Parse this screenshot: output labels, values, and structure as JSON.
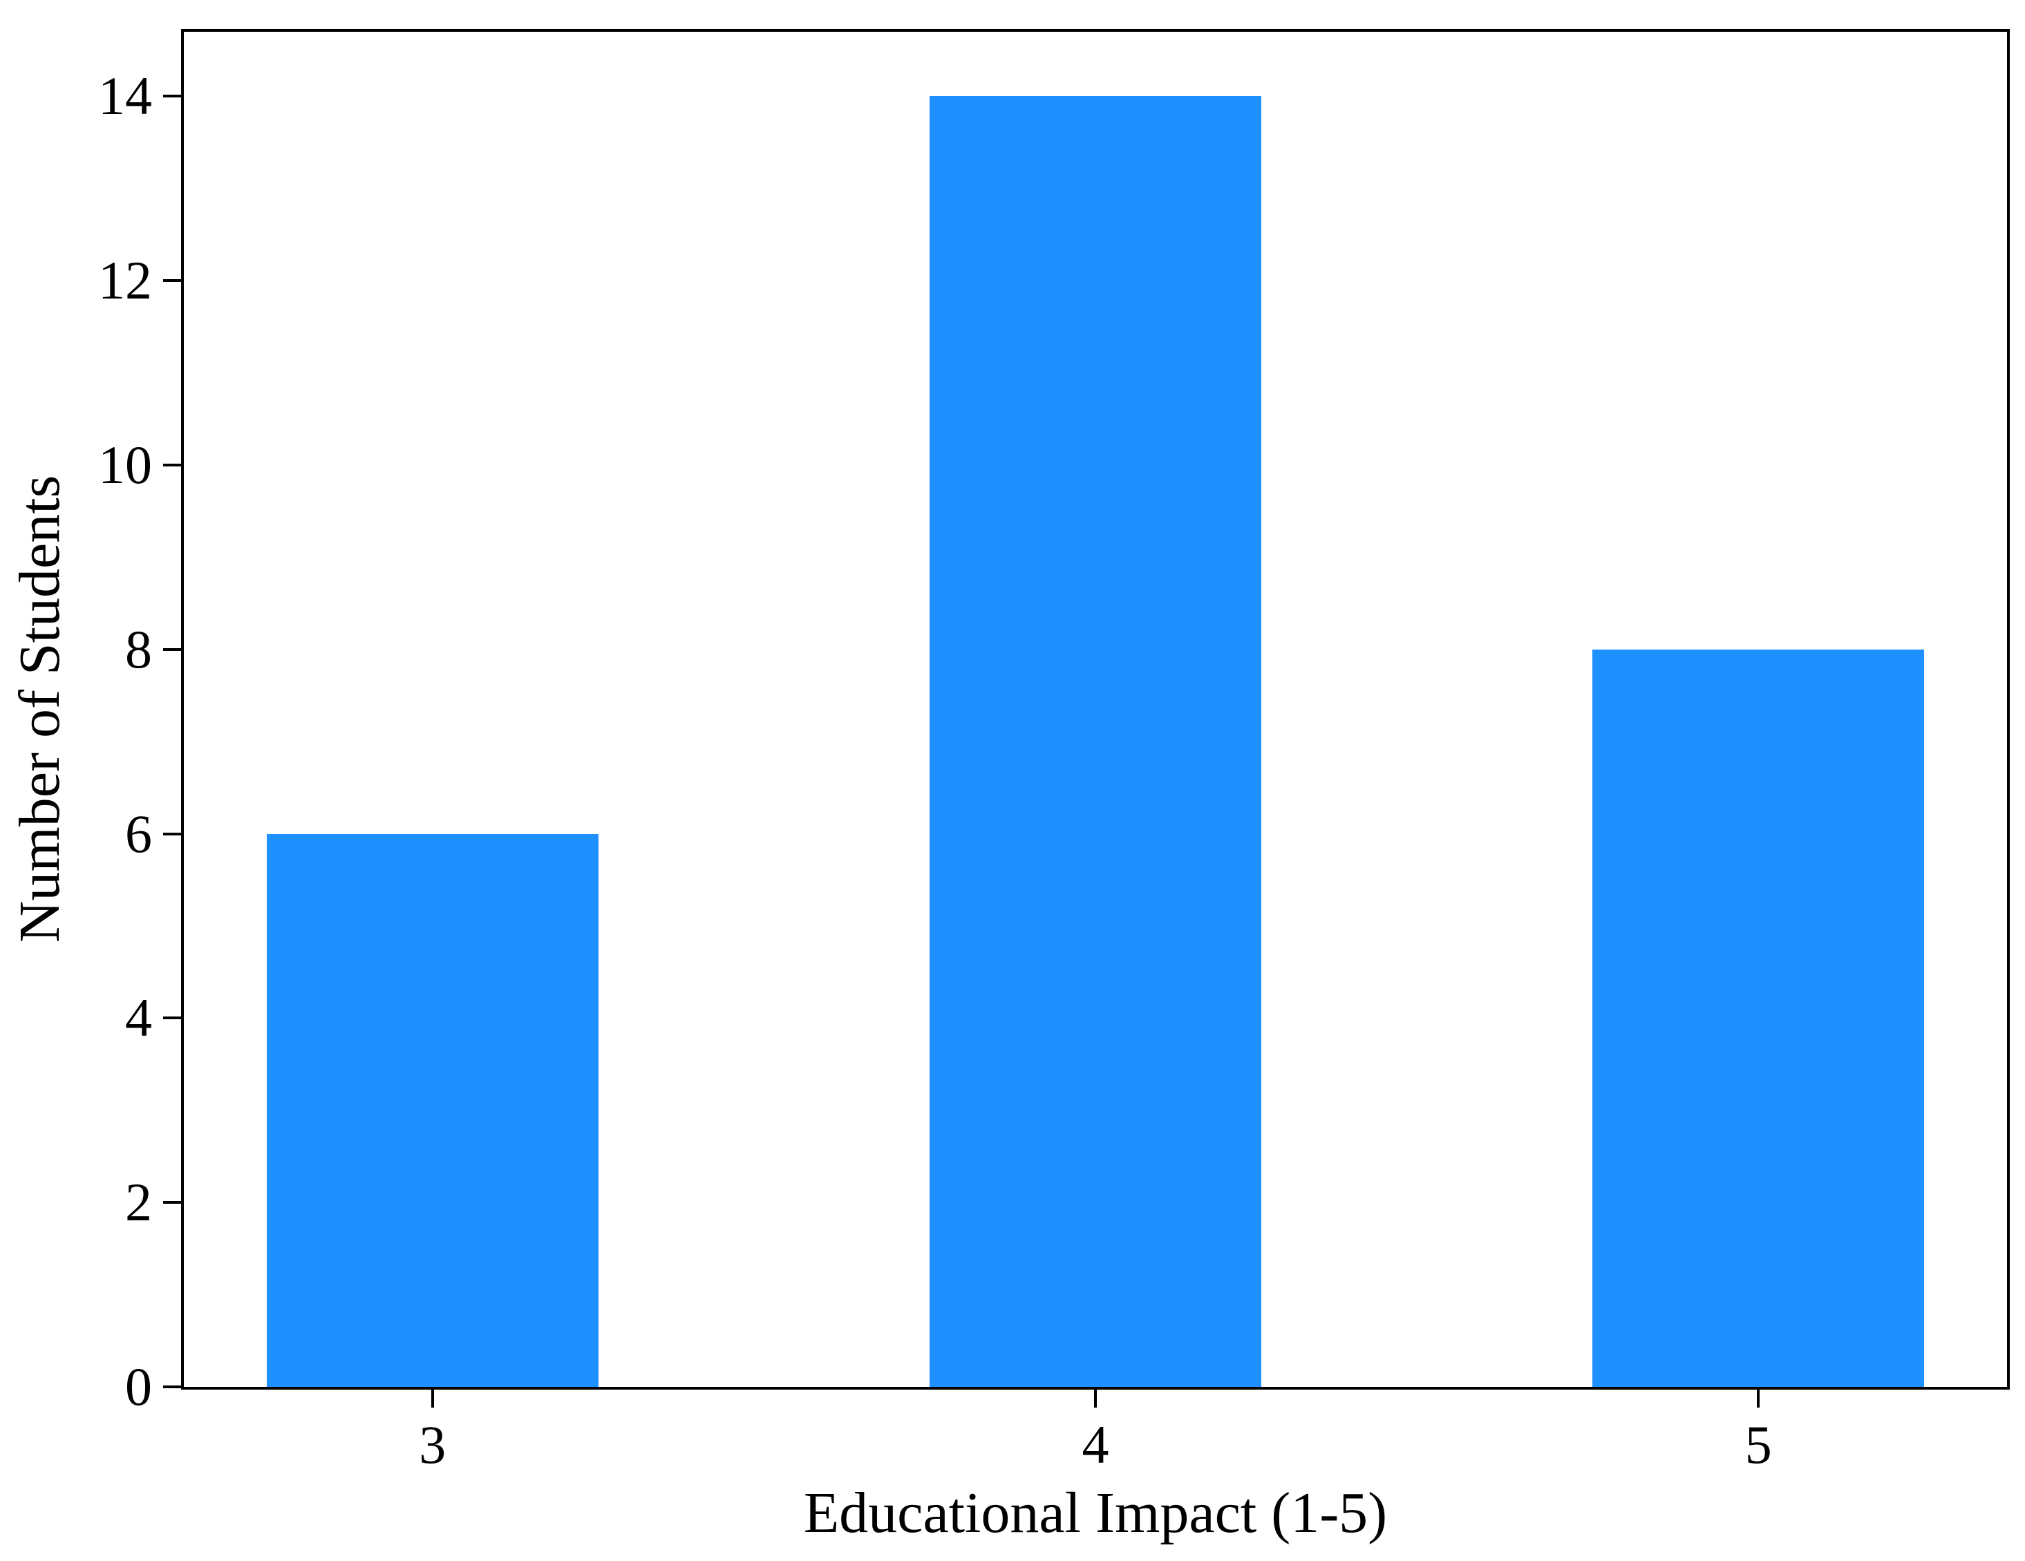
{
  "chart_data": {
    "type": "bar",
    "title": "",
    "categories": [
      "3",
      "4",
      "5"
    ],
    "values": [
      6,
      14,
      8
    ],
    "xlabel": "Educational Impact (1-5)",
    "ylabel": "Number of Students",
    "yticks": [
      0,
      2,
      4,
      6,
      8,
      10,
      12,
      14
    ],
    "ylim": [
      0,
      14.7
    ],
    "bar_color": "#1E90FF",
    "spine_color": "#000000",
    "background_color": "#FFFFFF",
    "grid": false,
    "legend": false,
    "bar_width_fraction": 0.5,
    "x_axis_span": 2.75,
    "x_left_margin": 0.375
  }
}
